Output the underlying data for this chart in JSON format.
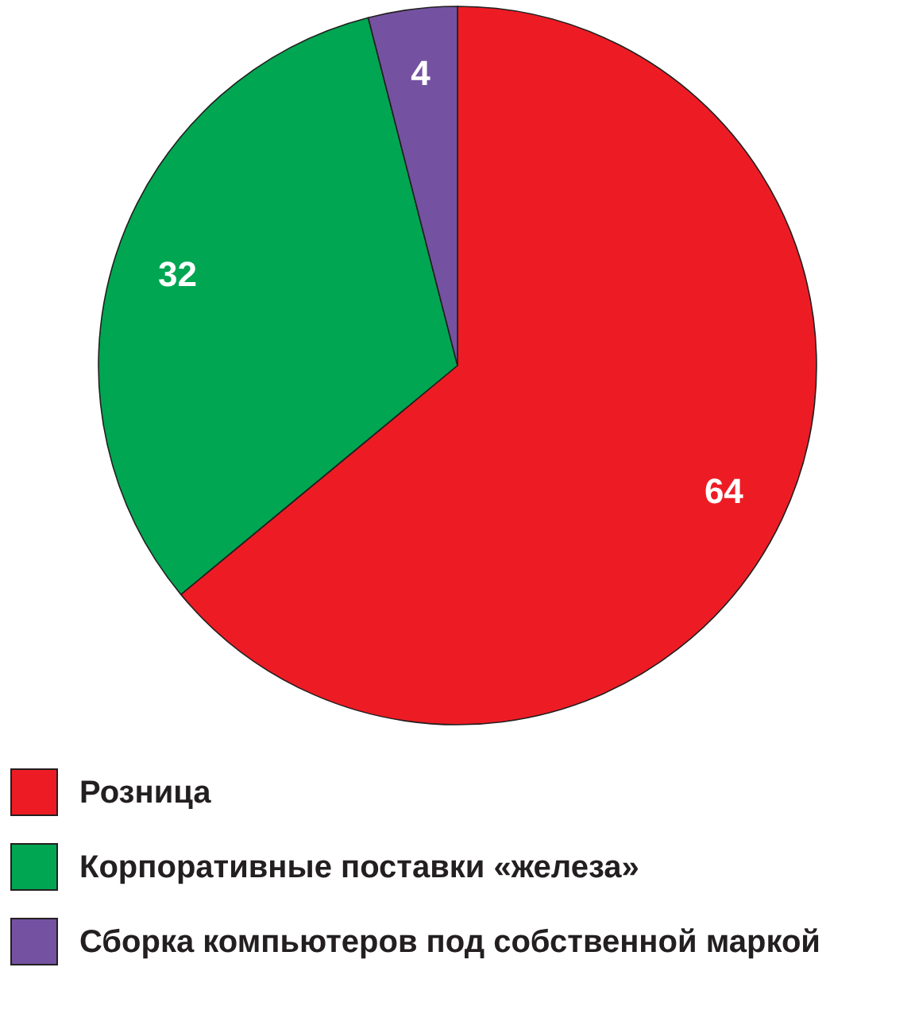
{
  "chart_data": {
    "type": "pie",
    "categories": [
      "Розница",
      "Корпоративные поставки «железа»",
      "Сборка компьютеров под собственной маркой"
    ],
    "values": [
      64,
      32,
      4
    ],
    "colors": [
      "#ed1c24",
      "#00a651",
      "#7452a1"
    ],
    "data_labels": true,
    "legend": "bottom"
  }
}
